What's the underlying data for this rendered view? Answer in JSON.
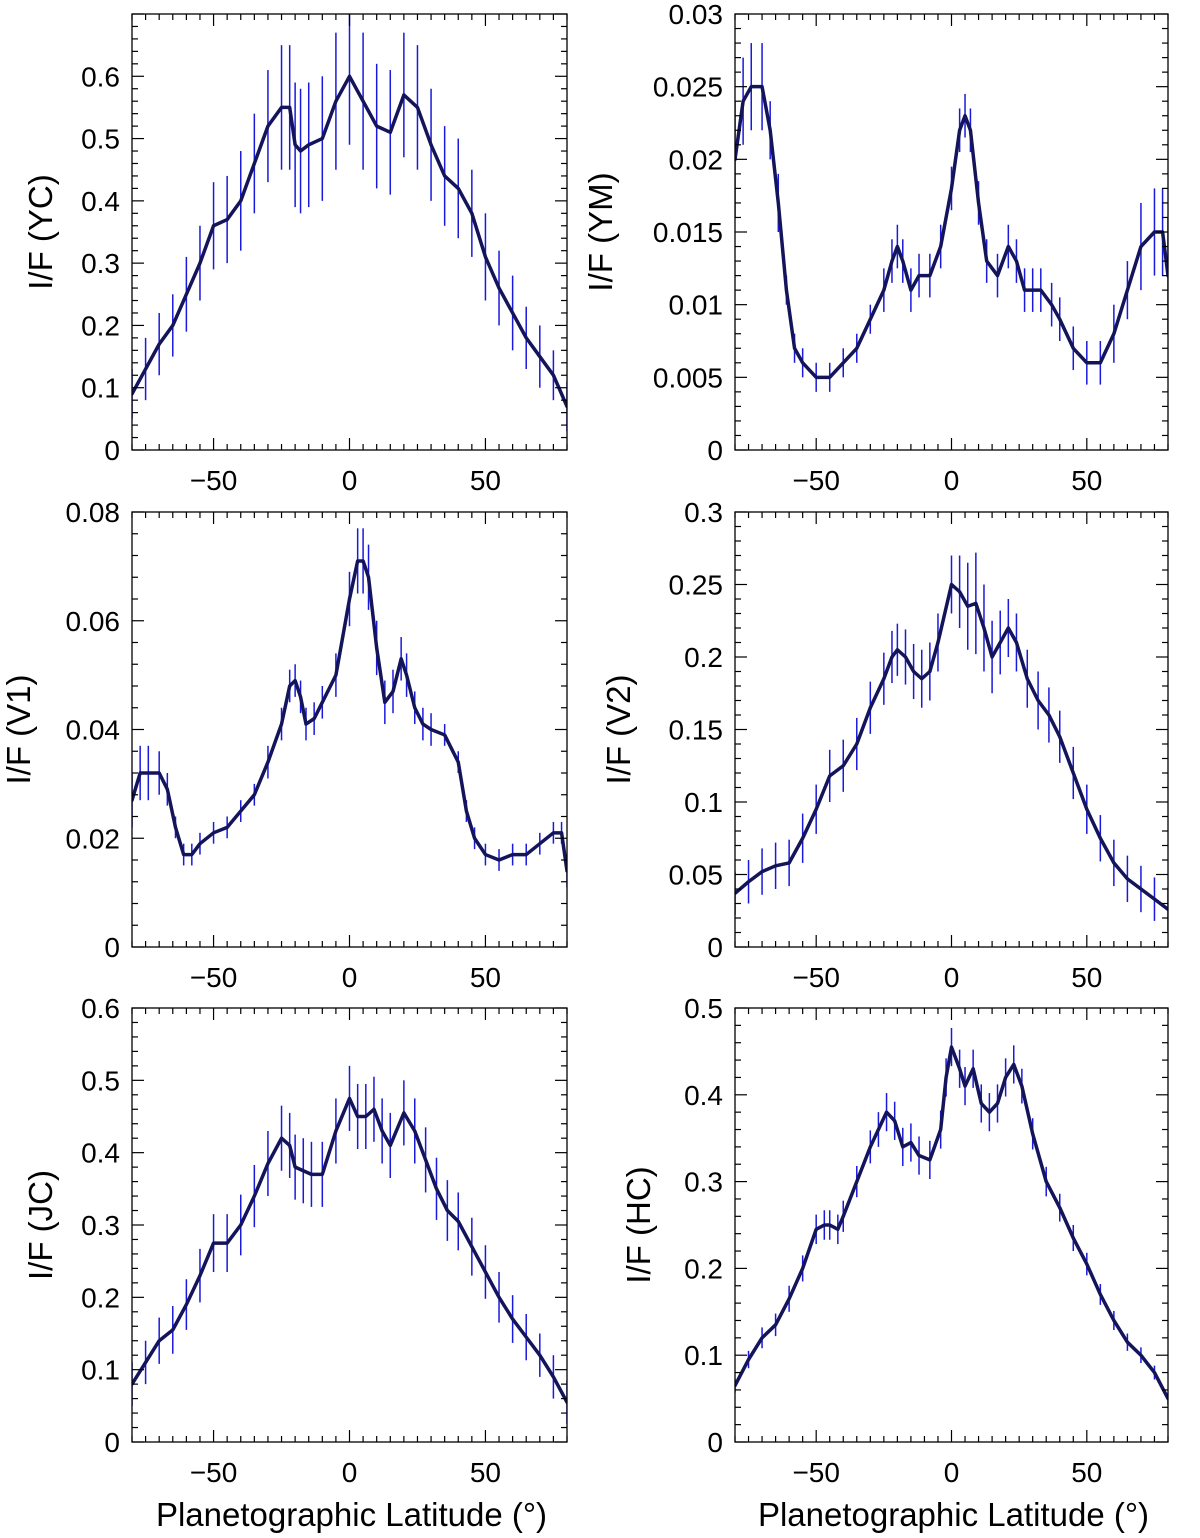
{
  "chart_data": [
    {
      "type": "line",
      "ylabel": "I/F (YC)",
      "xlabel": "",
      "xlim": [
        -80,
        80
      ],
      "ylim": [
        0,
        0.7
      ],
      "yticks": [
        0,
        0.1,
        0.2,
        0.3,
        0.4,
        0.5,
        0.6
      ],
      "ytick_labels": [
        "0",
        "0.1",
        "0.2",
        "0.3",
        "0.4",
        "0.5",
        "0.6"
      ],
      "xticks": [
        -50,
        0,
        50
      ],
      "xtick_labels": [
        "−50",
        "0",
        "50"
      ],
      "grid": false,
      "series": [
        {
          "x": [
            -80,
            -75,
            -70,
            -65,
            -60,
            -55,
            -50,
            -45,
            -40,
            -35,
            -30,
            -25,
            -22,
            -20,
            -18,
            -15,
            -10,
            -5,
            0,
            5,
            10,
            15,
            20,
            25,
            30,
            35,
            40,
            45,
            50,
            55,
            60,
            65,
            70,
            75,
            80
          ],
          "y": [
            0.09,
            0.13,
            0.17,
            0.2,
            0.25,
            0.3,
            0.36,
            0.37,
            0.4,
            0.46,
            0.52,
            0.55,
            0.55,
            0.49,
            0.48,
            0.49,
            0.5,
            0.56,
            0.6,
            0.56,
            0.52,
            0.51,
            0.57,
            0.55,
            0.49,
            0.44,
            0.42,
            0.38,
            0.31,
            0.26,
            0.22,
            0.18,
            0.15,
            0.12,
            0.07
          ],
          "err": [
            0.04,
            0.05,
            0.05,
            0.05,
            0.06,
            0.06,
            0.07,
            0.07,
            0.08,
            0.08,
            0.09,
            0.1,
            0.1,
            0.1,
            0.1,
            0.1,
            0.1,
            0.11,
            0.11,
            0.11,
            0.1,
            0.1,
            0.1,
            0.1,
            0.09,
            0.08,
            0.08,
            0.07,
            0.07,
            0.06,
            0.06,
            0.05,
            0.05,
            0.04,
            0.04
          ]
        }
      ]
    },
    {
      "type": "line",
      "ylabel": "I/F (YM)",
      "xlabel": "",
      "xlim": [
        -80,
        80
      ],
      "ylim": [
        0,
        0.03
      ],
      "yticks": [
        0,
        0.005,
        0.01,
        0.015,
        0.02,
        0.025,
        0.03
      ],
      "ytick_labels": [
        "0",
        "0.005",
        "0.01",
        "0.015",
        "0.02",
        "0.025",
        "0.03"
      ],
      "xticks": [
        -50,
        0,
        50
      ],
      "xtick_labels": [
        "−50",
        "0",
        "50"
      ],
      "grid": false,
      "series": [
        {
          "x": [
            -80,
            -77,
            -74,
            -70,
            -67,
            -64,
            -61,
            -58,
            -55,
            -50,
            -45,
            -40,
            -35,
            -30,
            -25,
            -22,
            -20,
            -18,
            -15,
            -12,
            -8,
            -4,
            0,
            3,
            5,
            7,
            10,
            13,
            17,
            21,
            24,
            27,
            30,
            33,
            37,
            40,
            45,
            50,
            55,
            60,
            65,
            70,
            75,
            78,
            80
          ],
          "y": [
            0.02,
            0.024,
            0.025,
            0.025,
            0.022,
            0.017,
            0.011,
            0.007,
            0.006,
            0.005,
            0.005,
            0.006,
            0.007,
            0.009,
            0.011,
            0.013,
            0.014,
            0.013,
            0.011,
            0.012,
            0.012,
            0.014,
            0.018,
            0.022,
            0.023,
            0.022,
            0.017,
            0.013,
            0.012,
            0.014,
            0.013,
            0.011,
            0.011,
            0.011,
            0.01,
            0.009,
            0.007,
            0.006,
            0.006,
            0.008,
            0.011,
            0.014,
            0.015,
            0.015,
            0.012
          ],
          "err": [
            0.004,
            0.003,
            0.003,
            0.003,
            0.002,
            0.002,
            0.001,
            0.001,
            0.001,
            0.001,
            0.001,
            0.001,
            0.001,
            0.001,
            0.0015,
            0.0015,
            0.0015,
            0.0015,
            0.0015,
            0.0015,
            0.0015,
            0.0015,
            0.0015,
            0.0015,
            0.0015,
            0.0015,
            0.0015,
            0.0015,
            0.0015,
            0.0015,
            0.0015,
            0.0015,
            0.0015,
            0.0015,
            0.0015,
            0.0015,
            0.0015,
            0.0015,
            0.0015,
            0.002,
            0.002,
            0.003,
            0.003,
            0.003,
            0.004
          ]
        }
      ]
    },
    {
      "type": "line",
      "ylabel": "I/F (V1)",
      "xlabel": "",
      "xlim": [
        -80,
        80
      ],
      "ylim": [
        0,
        0.08
      ],
      "yticks": [
        0,
        0.02,
        0.04,
        0.06,
        0.08
      ],
      "ytick_labels": [
        "0",
        "0.02",
        "0.04",
        "0.06",
        "0.08"
      ],
      "xticks": [
        -50,
        0,
        50
      ],
      "xtick_labels": [
        "−50",
        "0",
        "50"
      ],
      "grid": false,
      "series": [
        {
          "x": [
            -80,
            -77,
            -74,
            -70,
            -67,
            -64,
            -61,
            -58,
            -55,
            -50,
            -45,
            -40,
            -35,
            -30,
            -25,
            -22,
            -20,
            -18,
            -16,
            -13,
            -10,
            -5,
            0,
            3,
            5,
            7,
            10,
            13,
            16,
            19,
            21,
            24,
            27,
            30,
            35,
            40,
            43,
            46,
            50,
            55,
            60,
            65,
            70,
            75,
            78,
            80
          ],
          "y": [
            0.027,
            0.032,
            0.032,
            0.032,
            0.029,
            0.022,
            0.017,
            0.017,
            0.019,
            0.021,
            0.022,
            0.025,
            0.028,
            0.034,
            0.041,
            0.048,
            0.049,
            0.046,
            0.041,
            0.042,
            0.045,
            0.05,
            0.064,
            0.071,
            0.071,
            0.068,
            0.055,
            0.045,
            0.047,
            0.053,
            0.05,
            0.044,
            0.041,
            0.04,
            0.039,
            0.034,
            0.025,
            0.02,
            0.017,
            0.016,
            0.017,
            0.017,
            0.019,
            0.021,
            0.021,
            0.014
          ],
          "err": [
            0.005,
            0.005,
            0.005,
            0.004,
            0.003,
            0.002,
            0.002,
            0.002,
            0.002,
            0.002,
            0.002,
            0.002,
            0.002,
            0.003,
            0.003,
            0.003,
            0.003,
            0.003,
            0.003,
            0.003,
            0.003,
            0.004,
            0.005,
            0.006,
            0.006,
            0.006,
            0.005,
            0.004,
            0.004,
            0.004,
            0.004,
            0.003,
            0.003,
            0.003,
            0.002,
            0.002,
            0.002,
            0.002,
            0.002,
            0.002,
            0.002,
            0.002,
            0.002,
            0.002,
            0.002,
            0.003
          ]
        }
      ]
    },
    {
      "type": "line",
      "ylabel": "I/F (V2)",
      "xlabel": "",
      "xlim": [
        -80,
        80
      ],
      "ylim": [
        0,
        0.3
      ],
      "yticks": [
        0,
        0.05,
        0.1,
        0.15,
        0.2,
        0.25,
        0.3
      ],
      "ytick_labels": [
        "0",
        "0.05",
        "0.1",
        "0.15",
        "0.2",
        "0.25",
        "0.3"
      ],
      "xticks": [
        -50,
        0,
        50
      ],
      "xtick_labels": [
        "−50",
        "0",
        "50"
      ],
      "grid": false,
      "series": [
        {
          "x": [
            -80,
            -75,
            -70,
            -65,
            -60,
            -55,
            -50,
            -45,
            -40,
            -35,
            -30,
            -25,
            -22,
            -20,
            -17,
            -14,
            -11,
            -8,
            -5,
            0,
            3,
            6,
            9,
            12,
            15,
            18,
            21,
            24,
            28,
            32,
            36,
            40,
            45,
            50,
            55,
            60,
            65,
            70,
            75,
            80
          ],
          "y": [
            0.037,
            0.045,
            0.052,
            0.056,
            0.058,
            0.075,
            0.095,
            0.118,
            0.125,
            0.14,
            0.165,
            0.185,
            0.2,
            0.205,
            0.2,
            0.19,
            0.185,
            0.19,
            0.21,
            0.25,
            0.245,
            0.235,
            0.237,
            0.22,
            0.2,
            0.21,
            0.22,
            0.21,
            0.185,
            0.17,
            0.16,
            0.145,
            0.12,
            0.095,
            0.075,
            0.058,
            0.047,
            0.04,
            0.033,
            0.026
          ],
          "err": [
            0.015,
            0.015,
            0.016,
            0.016,
            0.016,
            0.017,
            0.017,
            0.018,
            0.018,
            0.018,
            0.018,
            0.018,
            0.018,
            0.018,
            0.019,
            0.019,
            0.02,
            0.02,
            0.02,
            0.02,
            0.025,
            0.03,
            0.035,
            0.03,
            0.025,
            0.022,
            0.02,
            0.02,
            0.02,
            0.02,
            0.019,
            0.018,
            0.018,
            0.017,
            0.016,
            0.016,
            0.016,
            0.016,
            0.015,
            0.015
          ]
        }
      ]
    },
    {
      "type": "line",
      "ylabel": "I/F (JC)",
      "xlabel": "Planetographic Latitude (°)",
      "xlim": [
        -80,
        80
      ],
      "ylim": [
        0,
        0.6
      ],
      "yticks": [
        0,
        0.1,
        0.2,
        0.3,
        0.4,
        0.5,
        0.6
      ],
      "ytick_labels": [
        "0",
        "0.1",
        "0.2",
        "0.3",
        "0.4",
        "0.5",
        "0.6"
      ],
      "xticks": [
        -50,
        0,
        50
      ],
      "xtick_labels": [
        "−50",
        "0",
        "50"
      ],
      "grid": false,
      "series": [
        {
          "x": [
            -80,
            -75,
            -70,
            -65,
            -60,
            -55,
            -50,
            -45,
            -40,
            -35,
            -30,
            -25,
            -22,
            -20,
            -17,
            -14,
            -10,
            -5,
            0,
            3,
            6,
            9,
            12,
            15,
            20,
            24,
            28,
            32,
            36,
            40,
            45,
            50,
            55,
            60,
            65,
            70,
            75,
            80
          ],
          "y": [
            0.08,
            0.11,
            0.14,
            0.155,
            0.19,
            0.23,
            0.275,
            0.275,
            0.3,
            0.34,
            0.385,
            0.42,
            0.41,
            0.38,
            0.375,
            0.37,
            0.37,
            0.43,
            0.475,
            0.45,
            0.45,
            0.46,
            0.43,
            0.41,
            0.455,
            0.43,
            0.39,
            0.35,
            0.32,
            0.305,
            0.27,
            0.235,
            0.2,
            0.17,
            0.145,
            0.12,
            0.09,
            0.055
          ],
          "err": [
            0.03,
            0.03,
            0.032,
            0.033,
            0.035,
            0.037,
            0.04,
            0.04,
            0.042,
            0.043,
            0.045,
            0.045,
            0.045,
            0.045,
            0.045,
            0.045,
            0.045,
            0.045,
            0.045,
            0.045,
            0.045,
            0.045,
            0.045,
            0.045,
            0.045,
            0.045,
            0.045,
            0.043,
            0.042,
            0.04,
            0.04,
            0.037,
            0.035,
            0.033,
            0.032,
            0.03,
            0.03,
            0.03
          ]
        }
      ]
    },
    {
      "type": "line",
      "ylabel": "I/F (HC)",
      "xlabel": "Planetographic Latitude (°)",
      "xlim": [
        -80,
        80
      ],
      "ylim": [
        0,
        0.5
      ],
      "yticks": [
        0,
        0.1,
        0.2,
        0.3,
        0.4,
        0.5
      ],
      "ytick_labels": [
        "0",
        "0.1",
        "0.2",
        "0.3",
        "0.4",
        "0.5"
      ],
      "xticks": [
        -50,
        0,
        50
      ],
      "xtick_labels": [
        "−50",
        "0",
        "50"
      ],
      "grid": false,
      "series": [
        {
          "x": [
            -80,
            -75,
            -70,
            -65,
            -60,
            -55,
            -50,
            -47,
            -45,
            -42,
            -40,
            -35,
            -30,
            -27,
            -24,
            -21,
            -18,
            -15,
            -12,
            -8,
            -4,
            -2,
            0,
            3,
            5,
            8,
            11,
            14,
            17,
            20,
            23,
            26,
            30,
            35,
            40,
            45,
            50,
            55,
            60,
            65,
            70,
            75,
            80
          ],
          "y": [
            0.065,
            0.095,
            0.12,
            0.135,
            0.165,
            0.2,
            0.245,
            0.25,
            0.25,
            0.245,
            0.26,
            0.3,
            0.34,
            0.36,
            0.38,
            0.37,
            0.34,
            0.345,
            0.33,
            0.325,
            0.36,
            0.42,
            0.455,
            0.43,
            0.41,
            0.43,
            0.39,
            0.38,
            0.39,
            0.42,
            0.435,
            0.41,
            0.355,
            0.3,
            0.27,
            0.235,
            0.205,
            0.17,
            0.14,
            0.115,
            0.1,
            0.08,
            0.05
          ],
          "err": [
            0.008,
            0.01,
            0.012,
            0.013,
            0.015,
            0.015,
            0.017,
            0.017,
            0.017,
            0.017,
            0.018,
            0.018,
            0.019,
            0.02,
            0.022,
            0.022,
            0.022,
            0.022,
            0.022,
            0.022,
            0.022,
            0.022,
            0.022,
            0.022,
            0.022,
            0.022,
            0.022,
            0.022,
            0.022,
            0.022,
            0.022,
            0.02,
            0.018,
            0.017,
            0.016,
            0.015,
            0.013,
            0.012,
            0.011,
            0.01,
            0.009,
            0.008,
            0.007
          ]
        }
      ]
    }
  ],
  "style": {
    "line_color": "#14145a",
    "errorbar_color": "#1a1adc",
    "axis_color": "#000000"
  }
}
